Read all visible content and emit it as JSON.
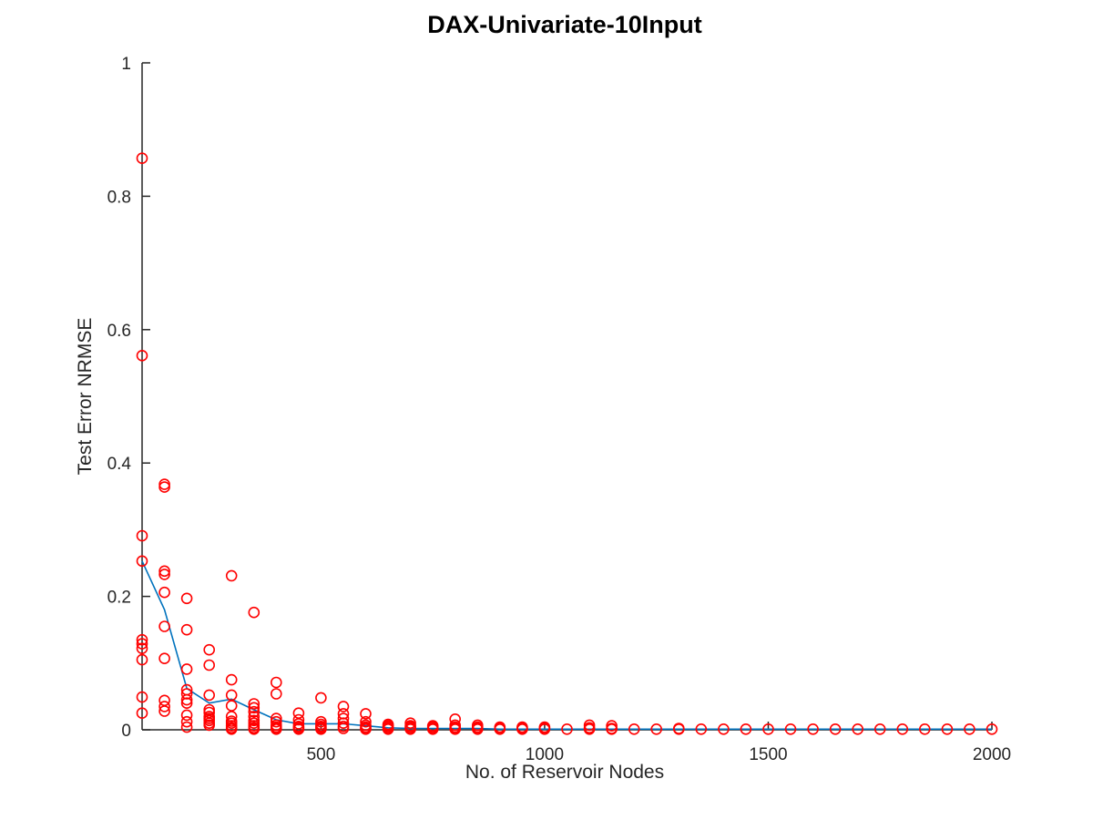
{
  "chart_data": {
    "type": "scatter",
    "title": "DAX-Univariate-10Input",
    "xlabel": "No. of Reservoir Nodes",
    "ylabel": "Test Error NRMSE",
    "xlim": [
      100,
      2000
    ],
    "ylim": [
      0,
      1
    ],
    "xticks": [
      500,
      1000,
      1500,
      2000
    ],
    "yticks": [
      0,
      0.2,
      0.4,
      0.6,
      0.8,
      1
    ],
    "ytick_labels": [
      "0",
      "0.2",
      "0.4",
      "0.6",
      "0.8",
      "1"
    ],
    "grid": false,
    "legend": "none",
    "colors": {
      "points": "#ff0000",
      "line": "#0072bd",
      "axis": "#262626"
    },
    "series": [
      {
        "marker": "circle",
        "points": [
          [
            100,
            0.857
          ],
          [
            100,
            0.561
          ],
          [
            100,
            0.291
          ],
          [
            100,
            0.253
          ],
          [
            100,
            0.135
          ],
          [
            100,
            0.129
          ],
          [
            100,
            0.122
          ],
          [
            100,
            0.105
          ],
          [
            100,
            0.049
          ],
          [
            100,
            0.025
          ],
          [
            150,
            0.368
          ],
          [
            150,
            0.364
          ],
          [
            150,
            0.238
          ],
          [
            150,
            0.233
          ],
          [
            150,
            0.206
          ],
          [
            150,
            0.155
          ],
          [
            150,
            0.107
          ],
          [
            150,
            0.044
          ],
          [
            150,
            0.035
          ],
          [
            150,
            0.028
          ],
          [
            200,
            0.197
          ],
          [
            200,
            0.15
          ],
          [
            200,
            0.091
          ],
          [
            200,
            0.06
          ],
          [
            200,
            0.054
          ],
          [
            200,
            0.045
          ],
          [
            200,
            0.04
          ],
          [
            200,
            0.022
          ],
          [
            200,
            0.012
          ],
          [
            200,
            0.004
          ],
          [
            250,
            0.12
          ],
          [
            250,
            0.097
          ],
          [
            250,
            0.052
          ],
          [
            250,
            0.03
          ],
          [
            250,
            0.026
          ],
          [
            250,
            0.02
          ],
          [
            250,
            0.017
          ],
          [
            250,
            0.014
          ],
          [
            250,
            0.01
          ],
          [
            250,
            0.007
          ],
          [
            300,
            0.231
          ],
          [
            300,
            0.075
          ],
          [
            300,
            0.052
          ],
          [
            300,
            0.036
          ],
          [
            300,
            0.02
          ],
          [
            300,
            0.013
          ],
          [
            300,
            0.01
          ],
          [
            300,
            0.006
          ],
          [
            300,
            0.003
          ],
          [
            300,
            0.001
          ],
          [
            350,
            0.176
          ],
          [
            350,
            0.039
          ],
          [
            350,
            0.033
          ],
          [
            350,
            0.027
          ],
          [
            350,
            0.02
          ],
          [
            350,
            0.014
          ],
          [
            350,
            0.01
          ],
          [
            350,
            0.006
          ],
          [
            350,
            0.003
          ],
          [
            350,
            0.001
          ],
          [
            400,
            0.071
          ],
          [
            400,
            0.054
          ],
          [
            400,
            0.017
          ],
          [
            400,
            0.012
          ],
          [
            400,
            0.007
          ],
          [
            400,
            0.004
          ],
          [
            400,
            0.002
          ],
          [
            400,
            0.001
          ],
          [
            450,
            0.025
          ],
          [
            450,
            0.015
          ],
          [
            450,
            0.009
          ],
          [
            450,
            0.005
          ],
          [
            450,
            0.003
          ],
          [
            450,
            0.001
          ],
          [
            500,
            0.048
          ],
          [
            500,
            0.012
          ],
          [
            500,
            0.008
          ],
          [
            500,
            0.005
          ],
          [
            500,
            0.003
          ],
          [
            500,
            0.001
          ],
          [
            550,
            0.035
          ],
          [
            550,
            0.024
          ],
          [
            550,
            0.017
          ],
          [
            550,
            0.01
          ],
          [
            550,
            0.005
          ],
          [
            550,
            0.002
          ],
          [
            600,
            0.024
          ],
          [
            600,
            0.012
          ],
          [
            600,
            0.007
          ],
          [
            600,
            0.004
          ],
          [
            600,
            0.002
          ],
          [
            600,
            0.001
          ],
          [
            650,
            0.008
          ],
          [
            650,
            0.006
          ],
          [
            650,
            0.004
          ],
          [
            650,
            0.002
          ],
          [
            650,
            0.001
          ],
          [
            700,
            0.01
          ],
          [
            700,
            0.006
          ],
          [
            700,
            0.004
          ],
          [
            700,
            0.002
          ],
          [
            700,
            0.001
          ],
          [
            750,
            0.006
          ],
          [
            750,
            0.004
          ],
          [
            750,
            0.002
          ],
          [
            750,
            0.001
          ],
          [
            800,
            0.016
          ],
          [
            800,
            0.007
          ],
          [
            800,
            0.004
          ],
          [
            800,
            0.002
          ],
          [
            800,
            0.001
          ],
          [
            850,
            0.007
          ],
          [
            850,
            0.004
          ],
          [
            850,
            0.002
          ],
          [
            850,
            0.001
          ],
          [
            900,
            0.004
          ],
          [
            900,
            0.002
          ],
          [
            900,
            0.001
          ],
          [
            950,
            0.004
          ],
          [
            950,
            0.002
          ],
          [
            950,
            0.001
          ],
          [
            1000,
            0.004
          ],
          [
            1000,
            0.002
          ],
          [
            1000,
            0.001
          ],
          [
            1050,
            0.001
          ],
          [
            1100,
            0.007
          ],
          [
            1100,
            0.003
          ],
          [
            1100,
            0.001
          ],
          [
            1150,
            0.006
          ],
          [
            1150,
            0.002
          ],
          [
            1150,
            0.001
          ],
          [
            1200,
            0.001
          ],
          [
            1250,
            0.001
          ],
          [
            1300,
            0.002
          ],
          [
            1300,
            0.001
          ],
          [
            1350,
            0.001
          ],
          [
            1400,
            0.001
          ],
          [
            1450,
            0.001
          ],
          [
            1500,
            0.001
          ],
          [
            1550,
            0.001
          ],
          [
            1600,
            0.001
          ],
          [
            1650,
            0.001
          ],
          [
            1700,
            0.001
          ],
          [
            1750,
            0.001
          ],
          [
            1800,
            0.001
          ],
          [
            1850,
            0.001
          ],
          [
            1900,
            0.001
          ],
          [
            1950,
            0.001
          ],
          [
            2000,
            0.001
          ]
        ]
      },
      {
        "marker": "none",
        "x": [
          100,
          150,
          200,
          250,
          300,
          350,
          400,
          450,
          500,
          550,
          600,
          650,
          700,
          750,
          800,
          850,
          900,
          950,
          1000,
          1050,
          1100,
          1150,
          1200,
          1250,
          1300,
          1350,
          1400,
          1450,
          1500,
          1550,
          1600,
          1650,
          1700,
          1750,
          1800,
          1850,
          1900,
          1950,
          2000
        ],
        "y": [
          0.253,
          0.18,
          0.062,
          0.04,
          0.046,
          0.03,
          0.015,
          0.009,
          0.009,
          0.009,
          0.006,
          0.003,
          0.002,
          0.002,
          0.002,
          0.002,
          0.001,
          0.001,
          0.001,
          0.001,
          0.001,
          0.001,
          0.001,
          0.001,
          0.001,
          0.001,
          0.001,
          0.001,
          0.001,
          0.001,
          0.001,
          0.001,
          0.001,
          0.001,
          0.001,
          0.001,
          0.001,
          0.001,
          0.001
        ]
      }
    ]
  }
}
